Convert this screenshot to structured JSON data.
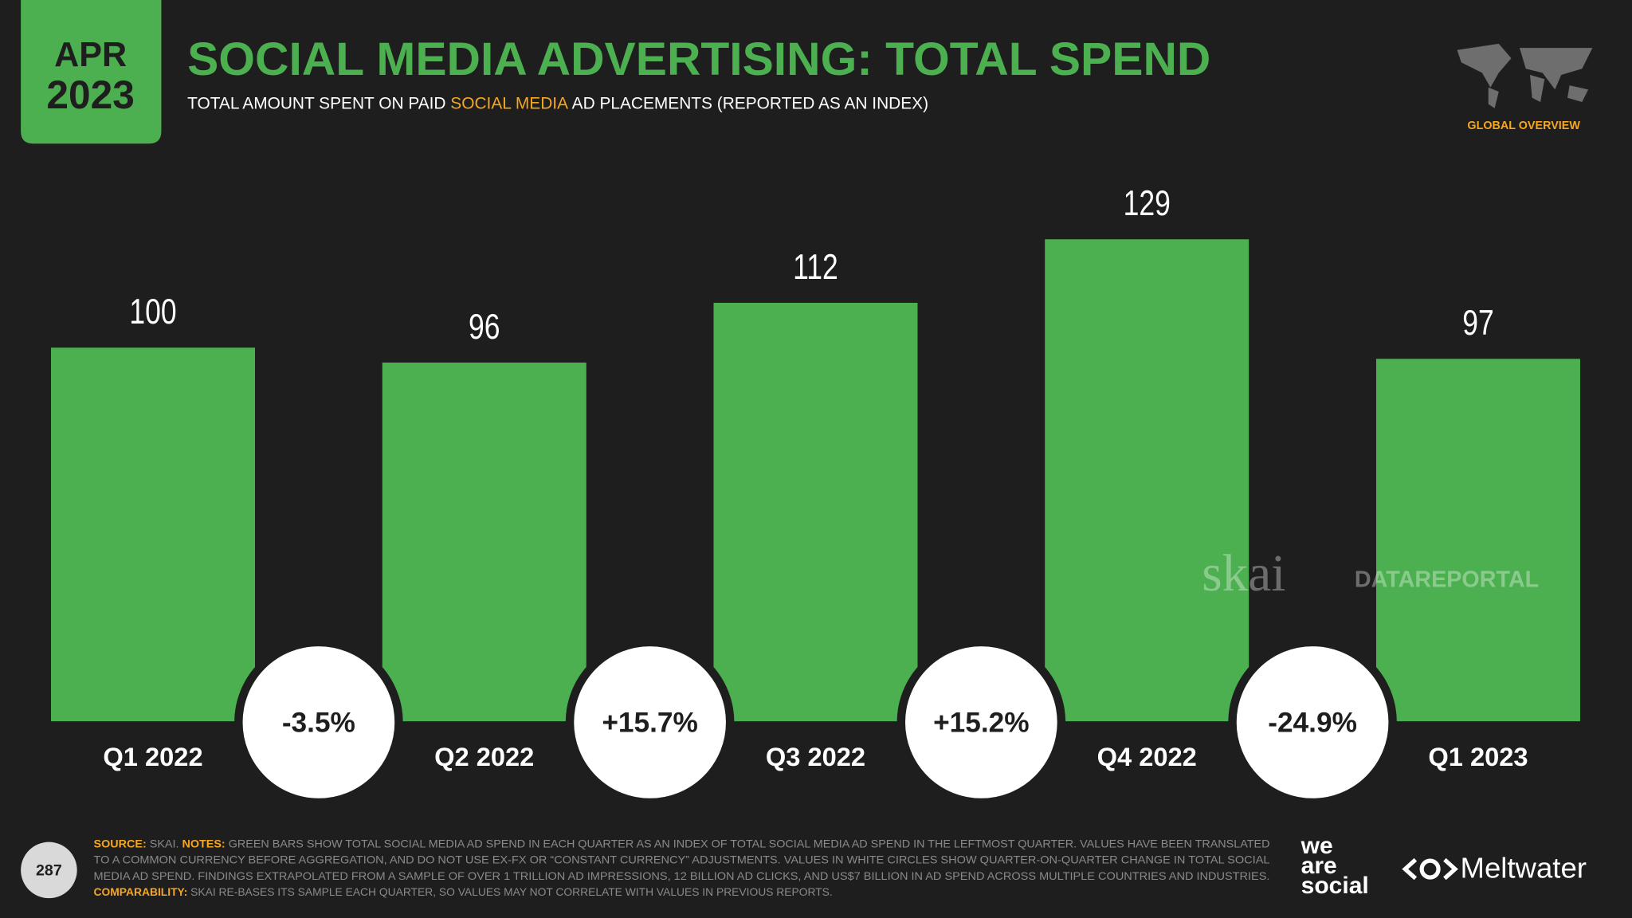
{
  "badge": {
    "month": "APR",
    "year": "2023"
  },
  "chart_data": {
    "type": "bar",
    "title": "SOCIAL MEDIA ADVERTISING: TOTAL SPEND",
    "subtitle": {
      "before": "TOTAL AMOUNT SPENT ON PAID ",
      "highlight": "SOCIAL MEDIA",
      "after": " AD PLACEMENTS (REPORTED AS AN INDEX)"
    },
    "categories": [
      "Q1 2022",
      "Q2 2022",
      "Q3 2022",
      "Q4 2022",
      "Q1 2023"
    ],
    "values": [
      100,
      96,
      112,
      129,
      97
    ],
    "color": "#4caf50",
    "changes": [
      -3.5,
      15.7,
      15.2,
      -24.9
    ],
    "change_labels": [
      "-3.5%",
      "+15.7%",
      "+15.2%",
      "-24.9%"
    ]
  },
  "section": "GLOBAL OVERVIEW",
  "watermarks": [
    "skai",
    "DATAREPORTAL"
  ],
  "page_number": "287",
  "footer": [
    [
      {
        "text": "SOURCE:",
        "highlight": true
      },
      {
        "text": " SKAI. "
      },
      {
        "text": "NOTES:",
        "highlight": true
      },
      {
        "text": " GREEN BARS SHOW TOTAL SOCIAL MEDIA AD SPEND IN EACH QUARTER AS AN INDEX OF TOTAL SOCIAL MEDIA AD SPEND IN THE LEFTMOST QUARTER. VALUES HAVE BEEN TRANSLATED"
      }
    ],
    [
      {
        "text": "TO A COMMON CURRENCY BEFORE AGGREGATION, AND DO NOT USE EX-FX OR “CONSTANT CURRENCY” ADJUSTMENTS. VALUES IN WHITE CIRCLES SHOW QUARTER-ON-QUARTER CHANGE IN TOTAL SOCIAL"
      }
    ],
    [
      {
        "text": "MEDIA AD SPEND. FINDINGS EXTRAPOLATED FROM A SAMPLE OF OVER 1 TRILLION AD IMPRESSIONS, 12 BILLION AD CLICKS, AND US$7 BILLION IN AD SPEND ACROSS MULTIPLE COUNTRIES AND INDUSTRIES."
      }
    ],
    [
      {
        "text": "COMPARABILITY:",
        "highlight": true
      },
      {
        "text": " SKAI RE-BASES ITS SAMPLE EACH QUARTER, SO VALUES MAY NOT CORRELATE WITH VALUES IN PREVIOUS REPORTS."
      }
    ]
  ],
  "logos": {
    "was": [
      "we",
      "are",
      "social"
    ],
    "meltwater": "Meltwater"
  }
}
